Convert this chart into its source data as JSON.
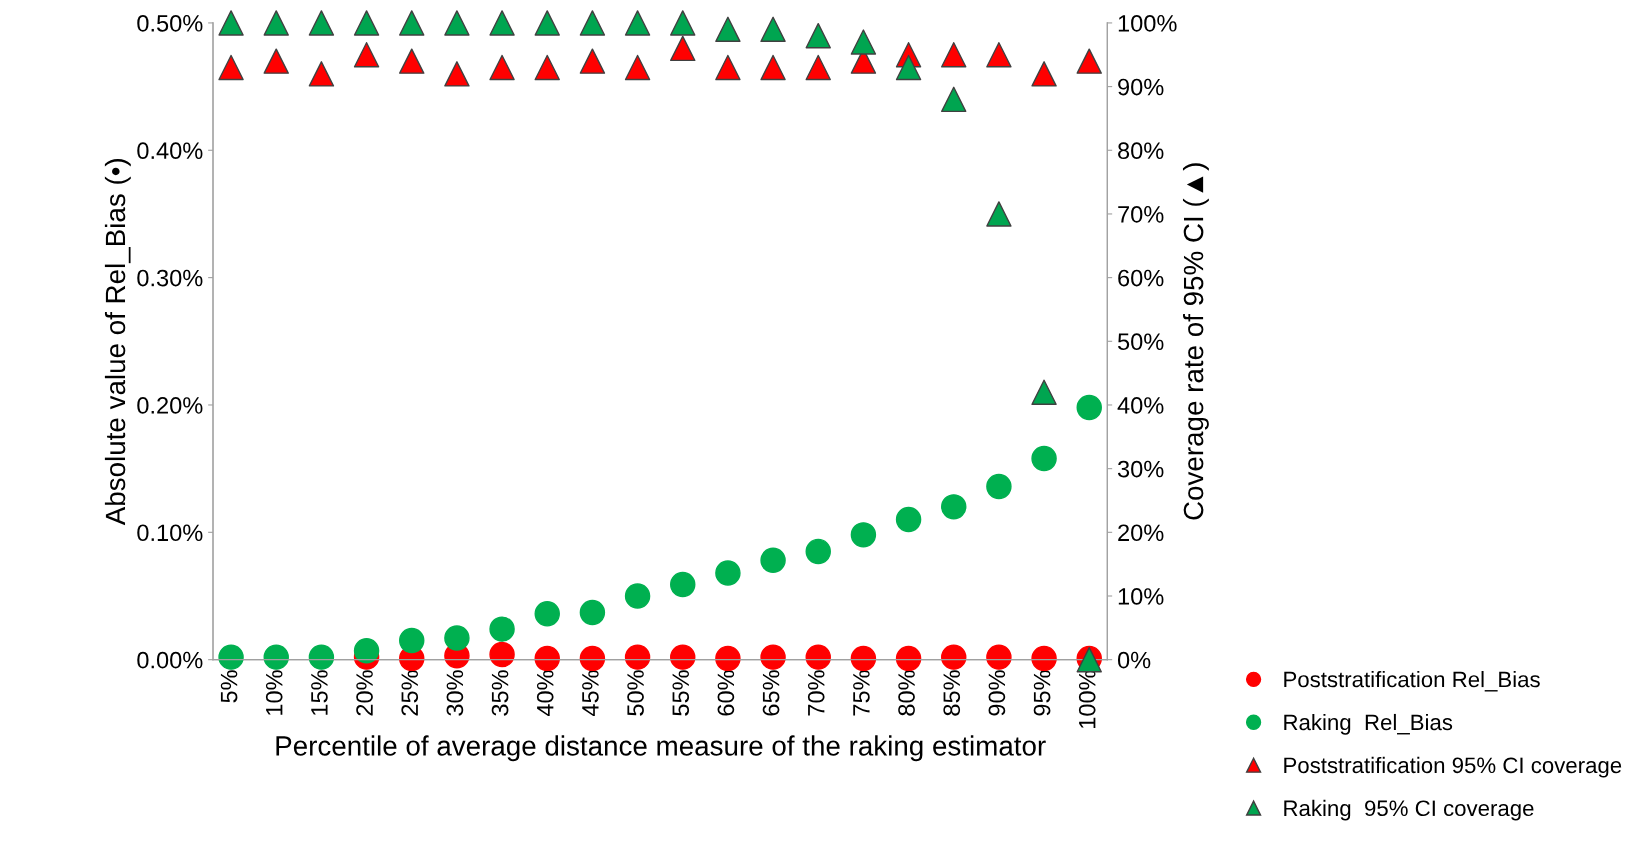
{
  "chart_data": {
    "type": "scatter",
    "xlabel": "Percentile of average distance measure of the raking estimator",
    "ylabel": "Absolute value of Rel_Bias (•)",
    "y2label": "Coverage rate of 95% CI (▲)",
    "categories": [
      "5%",
      "10%",
      "15%",
      "20%",
      "25%",
      "30%",
      "35%",
      "40%",
      "45%",
      "50%",
      "55%",
      "60%",
      "65%",
      "70%",
      "75%",
      "80%",
      "85%",
      "90%",
      "95%",
      "100%"
    ],
    "ylim": [
      0,
      0.5
    ],
    "yticks": [
      {
        "value": 0,
        "label": "0.00%"
      },
      {
        "value": 0.1,
        "label": "0.10%"
      },
      {
        "value": 0.2,
        "label": "0.20%"
      },
      {
        "value": 0.3,
        "label": "0.30%"
      },
      {
        "value": 0.4,
        "label": "0.40%"
      },
      {
        "value": 0.5,
        "label": "0.50%"
      }
    ],
    "y2lim": [
      0,
      100
    ],
    "y2ticks": [
      {
        "value": 0,
        "label": "0%"
      },
      {
        "value": 10,
        "label": "10%"
      },
      {
        "value": 20,
        "label": "20%"
      },
      {
        "value": 30,
        "label": "30%"
      },
      {
        "value": 40,
        "label": "40%"
      },
      {
        "value": 50,
        "label": "50%"
      },
      {
        "value": 60,
        "label": "60%"
      },
      {
        "value": 70,
        "label": "70%"
      },
      {
        "value": 80,
        "label": "80%"
      },
      {
        "value": 90,
        "label": "90%"
      },
      {
        "value": 100,
        "label": "100%"
      }
    ],
    "legend": "bottom right",
    "grid": false,
    "series": [
      {
        "name": "Poststratification Rel_Bias",
        "color": "#ff0000",
        "marker": "circle",
        "values": [
          null,
          null,
          null,
          0.002,
          0.001,
          0.003,
          0.004,
          0.001,
          0.001,
          0.002,
          0.002,
          0.001,
          0.002,
          0.002,
          0.001,
          0.001,
          0.002,
          0.002,
          0.001,
          0.001
        ]
      },
      {
        "name": "Raking  Rel_Bias",
        "color": "#00b050",
        "marker": "circle",
        "values": [
          0.002,
          0.002,
          0.002,
          0.007,
          0.015,
          0.017,
          0.024,
          0.036,
          0.037,
          0.05,
          0.059,
          0.068,
          0.078,
          0.085,
          0.098,
          0.11,
          0.12,
          0.136,
          0.158,
          0.198
        ]
      },
      {
        "name": "Poststratification 95% CI coverage",
        "color": "#ff0000",
        "marker": "triangle",
        "axis": "y2",
        "values": [
          93,
          94,
          92,
          95,
          94,
          92,
          93,
          93,
          94,
          93,
          96,
          93,
          93,
          93,
          94,
          95,
          95,
          95,
          92,
          94
        ]
      },
      {
        "name": "Raking  95% CI coverage",
        "color": "#00a550",
        "marker": "triangle",
        "axis": "y2",
        "values": [
          100,
          100,
          100,
          100,
          100,
          100,
          100,
          100,
          100,
          100,
          100,
          99,
          99,
          98,
          97,
          93,
          88,
          70,
          42,
          0
        ]
      }
    ]
  }
}
